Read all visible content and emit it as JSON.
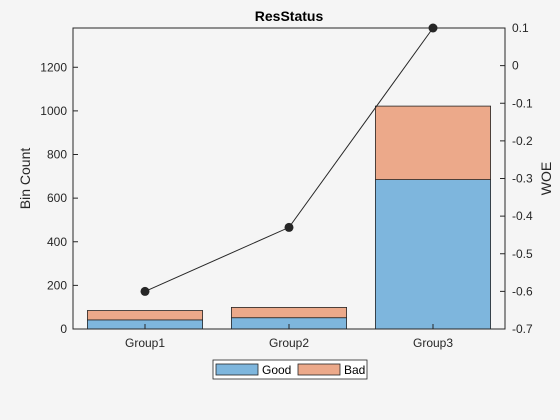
{
  "chart_data": {
    "type": "bar",
    "title": "ResStatus",
    "xlabel": "",
    "ylabel": "Bin Count",
    "y2label": "WOE",
    "categories": [
      "Group1",
      "Group2",
      "Group3"
    ],
    "stacked": true,
    "ylim": [
      0,
      1380
    ],
    "yticks": [
      "0",
      "200",
      "400",
      "600",
      "800",
      "1000",
      "1200"
    ],
    "y2lim": [
      -0.7,
      0.1
    ],
    "y2ticks": [
      "-0.7",
      "-0.6",
      "-0.5",
      "-0.4",
      "-0.3",
      "-0.2",
      "-0.1",
      "0",
      "0.1"
    ],
    "series": [
      {
        "name": "Good",
        "color": "#7eb6dd",
        "values": [
          42,
          52,
          685
        ]
      },
      {
        "name": "Bad",
        "color": "#eca98a",
        "values": [
          43,
          47,
          337
        ]
      }
    ],
    "woe": {
      "color": "#262626",
      "values": [
        -0.6,
        -0.43,
        0.1
      ]
    },
    "legend_position": "bottom-center",
    "grid": false
  }
}
